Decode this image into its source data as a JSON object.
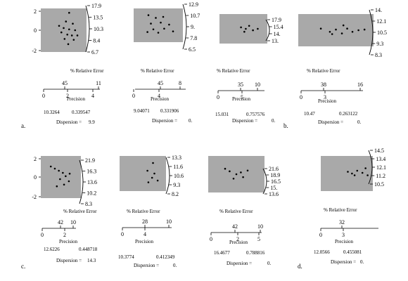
{
  "panels": [
    {
      "y_ticks": [
        "2",
        "0",
        "-2"
      ],
      "arc_ticks": [
        "17.9",
        "13.5",
        "10.3",
        "8.4",
        "6.7"
      ],
      "x_label": "% Relative Error",
      "scale_top": [
        "45",
        "11"
      ],
      "scale_bottom": [
        "0",
        "2",
        "4"
      ],
      "precision_label": "Precision",
      "values": [
        "10.3264",
        "0.339547"
      ],
      "dispersion_label": "Dispersion =",
      "dispersion_value": "9.9",
      "panel_letter": "a."
    },
    {
      "y_ticks": [],
      "arc_ticks": [
        "12.9",
        "10.7",
        "9.",
        "7.8",
        "6.5"
      ],
      "x_label": "% Relative Error",
      "scale_top": [
        "45",
        "8"
      ],
      "scale_bottom": [
        "0",
        "4"
      ],
      "precision_label": "Precision",
      "values": [
        "9.04071",
        "0.331906"
      ],
      "dispersion_label": "Dispersion =",
      "dispersion_value": "0.",
      "panel_letter": ""
    },
    {
      "y_ticks": [],
      "arc_ticks": [
        "17.9",
        "15.4",
        "14.",
        "13."
      ],
      "x_label": "% Relative Error",
      "scale_top": [
        "35",
        "10"
      ],
      "scale_bottom": [
        "0",
        "5"
      ],
      "precision_label": "Precision",
      "values": [
        "15.031",
        "0.757576"
      ],
      "dispersion_label": "Dispersion =",
      "dispersion_value": "0.",
      "panel_letter": ""
    },
    {
      "y_ticks": [],
      "arc_ticks": [
        "14.",
        "12.1",
        "10.5",
        "9.3",
        "8.3"
      ],
      "x_label": "% Relative Error",
      "scale_top": [
        "38",
        "16"
      ],
      "scale_bottom": [
        "0",
        "3"
      ],
      "precision_label": "Precision",
      "values": [
        "10.47",
        "0.263122"
      ],
      "dispersion_label": "Dispersion =",
      "dispersion_value": "0.",
      "panel_letter": "b."
    },
    {
      "y_ticks": [
        "2",
        "0",
        "-2"
      ],
      "arc_ticks": [
        "21.9",
        "16.3",
        "13.6",
        "10.2",
        "8.3"
      ],
      "x_label": "% Relative Error",
      "scale_top": [
        "42",
        "10"
      ],
      "scale_bottom": [
        "0",
        "2"
      ],
      "precision_label": "Precision",
      "values": [
        "12.6226",
        "0.448718"
      ],
      "dispersion_label": "Dispersion =",
      "dispersion_value": "14.3",
      "panel_letter": "c."
    },
    {
      "y_ticks": [],
      "arc_ticks": [
        "13.3",
        "11.6",
        "10.6",
        "9.3",
        "8.2"
      ],
      "x_label": "% Relative Error",
      "scale_top": [
        "28",
        "10"
      ],
      "scale_bottom": [
        "0",
        "4"
      ],
      "precision_label": "Precision",
      "values": [
        "10.3774",
        "0.412349"
      ],
      "dispersion_label": "Dispersion =",
      "dispersion_value": "0.",
      "panel_letter": ""
    },
    {
      "y_ticks": [],
      "arc_ticks": [
        "21.6",
        "18.9",
        "16.5",
        "15.",
        "13.6"
      ],
      "x_label": "% Relative Error",
      "scale_top": [
        "42",
        "10"
      ],
      "scale_bottom": [
        "0",
        "2",
        "5"
      ],
      "precision_label": "Precision",
      "values": [
        "16.4677",
        "0.788816"
      ],
      "dispersion_label": "Dispersion =",
      "dispersion_value": "0.",
      "panel_letter": ""
    },
    {
      "y_ticks": [],
      "arc_ticks": [
        "14.5",
        "13.4",
        "12.1",
        "11.2",
        "10.5"
      ],
      "x_label": "% Relative Error",
      "scale_top": [
        "32"
      ],
      "scale_bottom": [
        "0",
        "3"
      ],
      "precision_label": "Precision",
      "values": [
        "12.0566",
        "0.455081"
      ],
      "dispersion_label": "Dispersion =",
      "dispersion_value": "0.",
      "panel_letter": "d."
    }
  ]
}
